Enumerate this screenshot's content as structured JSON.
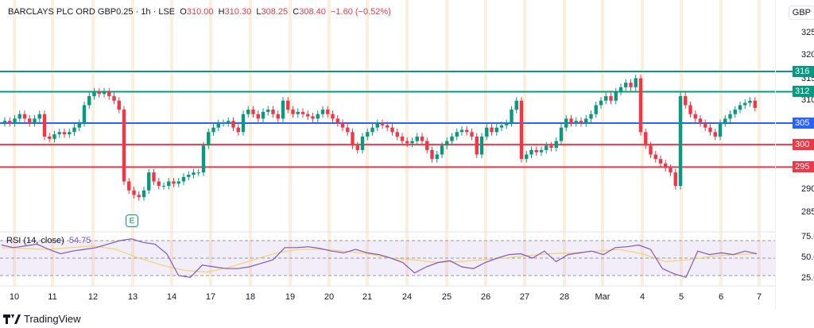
{
  "header": {
    "symbol": "BARCLAYS PLC ORD GBP0.25",
    "interval": "1h",
    "exchange": "LSE",
    "o_label": "O",
    "open": "310.00",
    "h_label": "H",
    "high": "310.30",
    "l_label": "L",
    "low": "308.25",
    "c_label": "C",
    "close": "308.40",
    "change": "−1.60 (−0.52%)"
  },
  "currency": "GBP",
  "colors": {
    "up": "#089981",
    "down": "#f23645",
    "support_blue": "#2962ff",
    "rsi": "#7e57c2",
    "rsi_ma": "#f2d46b"
  },
  "price_axis": [
    "325",
    "320",
    "315",
    "310",
    "290",
    "285"
  ],
  "levels": [
    {
      "label": "316",
      "value": 316.5,
      "color": "#089981"
    },
    {
      "label": "312",
      "value": 312,
      "color": "#089981"
    },
    {
      "label": "305",
      "value": 305,
      "color": "#2962ff"
    },
    {
      "label": "300",
      "value": 300.2,
      "color": "#f23645"
    },
    {
      "label": "295",
      "value": 295.2,
      "color": "#f23645"
    }
  ],
  "rsi": {
    "label": "RSI (14, close)",
    "value": "54.75",
    "axis": [
      "75.00",
      "50.00",
      "25.00"
    ]
  },
  "earnings_marker": "E",
  "x_axis": [
    "10",
    "11",
    "12",
    "13",
    "14",
    "17",
    "18",
    "19",
    "20",
    "21",
    "24",
    "25",
    "26",
    "27",
    "28",
    "Mar",
    "4",
    "5",
    "6",
    "7"
  ],
  "brand": "TradingView",
  "chart_data": {
    "type": "candlestick",
    "ylim": [
      282,
      328
    ],
    "first_open": 305,
    "closes": [
      305.5,
      305,
      306,
      307,
      306,
      305,
      306,
      307,
      302,
      301.5,
      302.5,
      303,
      302.5,
      303,
      304,
      305,
      309,
      311,
      312,
      311.5,
      312,
      311,
      310,
      308,
      292,
      290,
      289,
      288.5,
      290,
      294,
      292,
      291,
      291,
      292,
      291.5,
      292,
      293,
      293.5,
      294,
      294,
      300,
      303,
      304,
      305,
      305,
      305.5,
      304,
      303,
      307,
      308,
      307,
      306,
      307.5,
      308,
      307,
      306,
      310,
      308,
      307,
      307.5,
      307,
      306.5,
      306,
      307,
      308,
      307,
      306,
      305,
      304,
      303,
      300,
      299,
      302,
      303,
      304,
      305,
      304.5,
      304,
      303,
      302,
      301,
      300.5,
      301,
      302,
      301,
      299,
      297,
      298,
      300,
      301,
      302,
      303,
      303.5,
      303,
      302,
      298,
      302,
      304,
      303,
      304,
      304.5,
      305,
      308,
      310,
      297,
      298,
      299,
      298.5,
      299,
      300,
      299.5,
      301,
      304,
      306,
      305,
      305.5,
      305,
      306,
      307,
      309,
      310,
      311,
      310,
      312,
      313,
      314,
      313,
      315,
      303,
      300,
      298,
      297,
      296,
      295,
      294,
      291,
      311,
      309,
      307,
      306,
      305,
      304,
      303,
      302,
      305,
      306,
      307,
      308,
      309,
      309.5,
      310,
      308.4
    ],
    "rsi_values": [
      65,
      62,
      64,
      66,
      60,
      55,
      58,
      60,
      62,
      66,
      70,
      72,
      68,
      66,
      55,
      30,
      28,
      42,
      40,
      38,
      38,
      40,
      44,
      48,
      62,
      62,
      63,
      61,
      58,
      56,
      60,
      56,
      54,
      50,
      45,
      33,
      40,
      45,
      47,
      40,
      38,
      45,
      50,
      54,
      55,
      50,
      58,
      46,
      54,
      56,
      58,
      54,
      62,
      63,
      65,
      60,
      38,
      32,
      28,
      58,
      54,
      56,
      54,
      58,
      55
    ],
    "rsi_ma": [
      62,
      61,
      60,
      62,
      64,
      60,
      50,
      42,
      36,
      34,
      40,
      48,
      56,
      60,
      60,
      58,
      55,
      50,
      48,
      45,
      46,
      48,
      50,
      53,
      55,
      56,
      58,
      60,
      55,
      46,
      48,
      52,
      54,
      55
    ]
  }
}
